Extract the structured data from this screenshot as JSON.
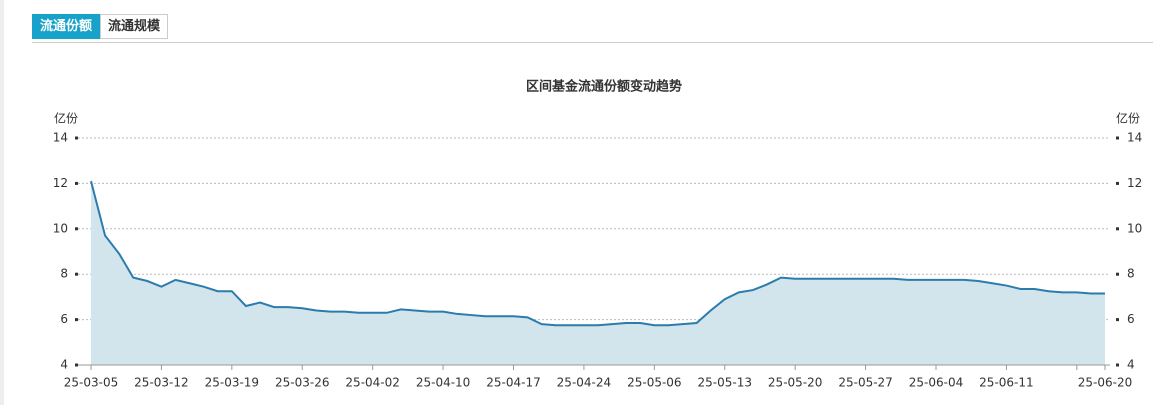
{
  "tabs": [
    "流通份额",
    "流通规模"
  ],
  "chart_data": {
    "type": "area",
    "title": "区间基金流通份额变动趋势",
    "y_label": "亿份",
    "y2_label": "亿份",
    "categories": [
      "25-03-05",
      null,
      null,
      null,
      null,
      "25-03-12",
      null,
      null,
      null,
      null,
      "25-03-19",
      null,
      null,
      null,
      null,
      "25-03-26",
      null,
      null,
      null,
      null,
      "25-04-02",
      null,
      null,
      null,
      null,
      "25-04-10",
      null,
      null,
      null,
      null,
      "25-04-17",
      null,
      null,
      null,
      null,
      "25-04-24",
      null,
      null,
      null,
      null,
      "25-05-06",
      null,
      null,
      null,
      null,
      "25-05-13",
      null,
      null,
      null,
      null,
      "25-05-20",
      null,
      null,
      null,
      null,
      "25-05-27",
      null,
      null,
      null,
      null,
      "25-06-04",
      null,
      null,
      null,
      null,
      "25-06-11",
      null,
      null,
      null,
      null,
      null,
      null,
      "25-06-20"
    ],
    "series": [
      {
        "color": "#2b7cac",
        "fill": "#d2e4ec",
        "values": [
          12.1,
          9.7,
          8.9,
          7.85,
          7.7,
          7.45,
          7.75,
          7.6,
          7.45,
          7.25,
          7.25,
          6.6,
          6.75,
          6.55,
          6.55,
          6.5,
          6.4,
          6.35,
          6.35,
          6.3,
          6.3,
          6.3,
          6.45,
          6.4,
          6.35,
          6.35,
          6.25,
          6.2,
          6.15,
          6.15,
          6.15,
          6.1,
          5.8,
          5.75,
          5.75,
          5.75,
          5.75,
          5.8,
          5.85,
          5.85,
          5.75,
          5.75,
          5.8,
          5.85,
          6.4,
          6.9,
          7.2,
          7.3,
          7.55,
          7.85,
          7.8,
          7.8,
          7.8,
          7.8,
          7.8,
          7.8,
          7.8,
          7.8,
          7.75,
          7.75,
          7.75,
          7.75,
          7.75,
          7.7,
          7.6,
          7.5,
          7.35,
          7.35,
          7.25,
          7.2,
          7.2,
          7.15,
          7.15
        ]
      }
    ],
    "ylim": [
      4,
      14
    ],
    "yticks": [
      4,
      6,
      8,
      10,
      12,
      14
    ],
    "y2lim": [
      4,
      14
    ],
    "y2ticks": [
      4,
      6,
      8,
      10,
      12,
      14
    ],
    "grid": true
  }
}
